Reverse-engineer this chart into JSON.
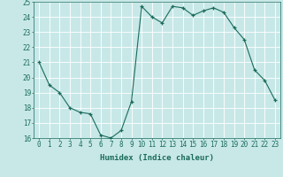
{
  "x": [
    0,
    1,
    2,
    3,
    4,
    5,
    6,
    7,
    8,
    9,
    10,
    11,
    12,
    13,
    14,
    15,
    16,
    17,
    18,
    19,
    20,
    21,
    22,
    23
  ],
  "y": [
    21.0,
    19.5,
    19.0,
    18.0,
    17.7,
    17.6,
    16.2,
    16.0,
    16.5,
    18.4,
    24.7,
    24.0,
    23.6,
    24.7,
    24.6,
    24.1,
    24.4,
    24.6,
    24.3,
    23.3,
    22.5,
    20.5,
    19.8,
    18.5
  ],
  "line_color": "#1a6b5a",
  "marker": "+",
  "marker_size": 3,
  "bg_color": "#c8e8e8",
  "grid_color": "#ffffff",
  "xlabel": "Humidex (Indice chaleur)",
  "ylim": [
    16,
    25
  ],
  "xlim": [
    -0.5,
    23.5
  ],
  "yticks": [
    16,
    17,
    18,
    19,
    20,
    21,
    22,
    23,
    24,
    25
  ],
  "xticks": [
    0,
    1,
    2,
    3,
    4,
    5,
    6,
    7,
    8,
    9,
    10,
    11,
    12,
    13,
    14,
    15,
    16,
    17,
    18,
    19,
    20,
    21,
    22,
    23
  ],
  "xlabel_fontsize": 6.5,
  "tick_fontsize": 5.5,
  "tick_color": "#1a6b5a",
  "axis_color": "#1a6b5a"
}
